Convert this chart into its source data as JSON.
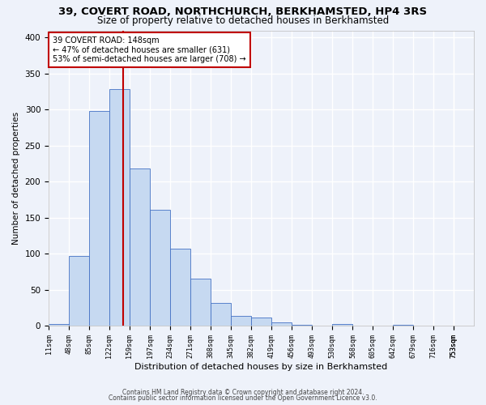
{
  "title1": "39, COVERT ROAD, NORTHCHURCH, BERKHAMSTED, HP4 3RS",
  "title2": "Size of property relative to detached houses in Berkhamsted",
  "xlabel": "Distribution of detached houses by size in Berkhamsted",
  "ylabel": "Number of detached properties",
  "bin_edges": [
    11,
    48,
    85,
    122,
    159,
    197,
    234,
    271,
    308,
    345,
    382,
    419,
    456,
    493,
    530,
    568,
    605,
    642,
    679,
    716,
    753
  ],
  "bar_heights": [
    3,
    97,
    298,
    328,
    218,
    161,
    107,
    66,
    32,
    14,
    12,
    5,
    1,
    0,
    2,
    0,
    0,
    1,
    0,
    0
  ],
  "bar_color": "#c6d9f1",
  "bar_edge_color": "#4472c4",
  "property_size": 148,
  "vline_color": "#c00000",
  "annotation_text": "39 COVERT ROAD: 148sqm\n← 47% of detached houses are smaller (631)\n53% of semi-detached houses are larger (708) →",
  "annotation_box_color": "#ffffff",
  "annotation_box_edge": "#c00000",
  "footer1": "Contains HM Land Registry data © Crown copyright and database right 2024.",
  "footer2": "Contains public sector information licensed under the Open Government Licence v3.0.",
  "ylim": [
    0,
    410
  ],
  "background_color": "#eef2fa",
  "grid_color": "#ffffff",
  "title1_fontsize": 9.5,
  "title2_fontsize": 8.5,
  "ylabel_fontsize": 7.5,
  "xlabel_fontsize": 8,
  "ytick_fontsize": 7.5,
  "xtick_fontsize": 6,
  "footer_fontsize": 5.5,
  "annot_fontsize": 7
}
